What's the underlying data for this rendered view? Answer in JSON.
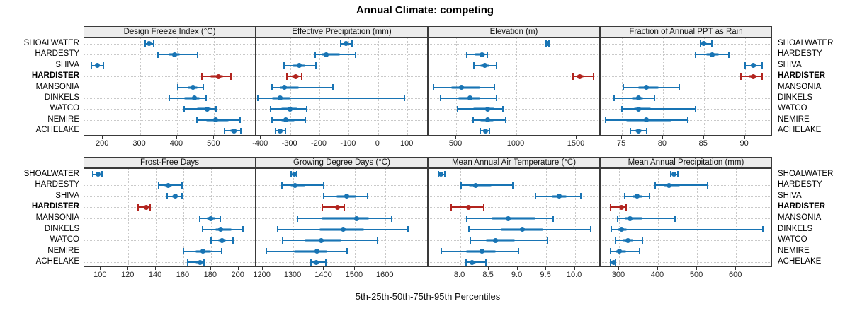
{
  "title": "Annual Climate: competing",
  "xlabel": "5th-25th-50th-75th-95th Percentiles",
  "colors": {
    "series": "#1874B4",
    "highlight": "#B2241E",
    "strip_bg": "#ECECEC",
    "grid": "#C9C9C9",
    "border": "#3A3A3A"
  },
  "highlight_site": "HARDISTER",
  "chart_data": {
    "type": "dotplot-percentiles",
    "percentile_labels": [
      "5th",
      "25th",
      "50th",
      "75th",
      "95th"
    ],
    "legend_note": "median dot with 5-95 whisker and 25-75 band; HARDISTER highlighted",
    "sites": [
      "SHOALWATER",
      "HARDESTY",
      "SHIVA",
      "HARDISTER",
      "MANSONIA",
      "DINKELS",
      "WATCO",
      "NEMIRE",
      "ACHELAKE"
    ],
    "panels": [
      {
        "title": "Design Freeze Index (°C)",
        "row": 0,
        "col": 0,
        "xlim": [
          150,
          614
        ],
        "ticks": [
          200,
          300,
          400,
          500
        ],
        "tick_labels": [
          "200",
          "300",
          "400",
          "500"
        ],
        "values": [
          [
            314,
            320,
            324,
            329,
            337
          ],
          [
            349,
            378,
            394,
            407,
            455
          ],
          [
            169,
            178,
            185,
            192,
            201
          ],
          [
            467,
            489,
            511,
            524,
            546
          ],
          [
            402,
            429,
            444,
            456,
            470
          ],
          [
            379,
            419,
            447,
            461,
            478
          ],
          [
            419,
            454,
            482,
            492,
            506
          ],
          [
            454,
            479,
            504,
            539,
            571
          ],
          [
            529,
            544,
            554,
            562,
            572
          ]
        ]
      },
      {
        "title": "Effective Precipitation (mm)",
        "row": 0,
        "col": 1,
        "xlim": [
          -415,
          172
        ],
        "ticks": [
          -400,
          -300,
          -200,
          -100,
          0,
          100
        ],
        "tick_labels": [
          "-400",
          "-300",
          "-200",
          "-100",
          "0",
          "100"
        ],
        "values": [
          [
            -128,
            -117,
            -109,
            -100,
            -89
          ],
          [
            -214,
            -192,
            -176,
            -131,
            -77
          ],
          [
            -321,
            -291,
            -269,
            -249,
            -211
          ],
          [
            -311,
            -294,
            -282,
            -271,
            -261
          ],
          [
            -361,
            -336,
            -319,
            -269,
            -154
          ],
          [
            -409,
            -361,
            -334,
            -299,
            90
          ],
          [
            -366,
            -331,
            -301,
            -274,
            -244
          ],
          [
            -361,
            -331,
            -314,
            -284,
            -249
          ],
          [
            -349,
            -340,
            -333,
            -326,
            -317
          ]
        ]
      },
      {
        "title": "Elevation (m)",
        "row": 0,
        "col": 2,
        "xlim": [
          270,
          1700
        ],
        "ticks": [
          500,
          1000,
          1500
        ],
        "tick_labels": [
          "500",
          "1000",
          "1500"
        ],
        "values": [
          [
            1245,
            1252,
            1257,
            1263,
            1271
          ],
          [
            585,
            655,
            712,
            742,
            761
          ],
          [
            644,
            699,
            739,
            774,
            834
          ],
          [
            1469,
            1499,
            1529,
            1559,
            1641
          ],
          [
            309,
            459,
            544,
            699,
            819
          ],
          [
            369,
            519,
            614,
            699,
            834
          ],
          [
            509,
            639,
            759,
            819,
            889
          ],
          [
            639,
            699,
            759,
            809,
            914
          ],
          [
            699,
            724,
            744,
            757,
            774
          ]
        ]
      },
      {
        "title": "Fraction of Annual PPT as Rain",
        "row": 0,
        "col": 3,
        "xlim": [
          72.4,
          93.4
        ],
        "ticks": [
          75,
          80,
          85,
          90
        ],
        "tick_labels": [
          "75",
          "80",
          "85",
          "90"
        ],
        "values": [
          [
            84.6,
            84.9,
            85.0,
            85.4,
            86.0
          ],
          [
            84.0,
            85.3,
            86.0,
            86.8,
            88.0
          ],
          [
            90.0,
            90.7,
            91.0,
            91.4,
            92.1
          ],
          [
            89.5,
            90.5,
            91.0,
            91.4,
            92.1
          ],
          [
            75.2,
            77.0,
            78.0,
            79.5,
            82.0
          ],
          [
            74.0,
            76.2,
            77.0,
            77.6,
            79.0
          ],
          [
            75.0,
            76.5,
            77.0,
            78.5,
            84.0
          ],
          [
            73.0,
            75.5,
            78.0,
            81.0,
            83.0
          ],
          [
            76.0,
            76.6,
            77.0,
            77.4,
            78.0
          ]
        ]
      },
      {
        "title": "Frost-Free Days",
        "row": 1,
        "col": 0,
        "xlim": [
          88,
          213
        ],
        "ticks": [
          100,
          120,
          140,
          160,
          180,
          200
        ],
        "tick_labels": [
          "100",
          "120",
          "140",
          "160",
          "180",
          "200"
        ],
        "values": [
          [
            94,
            96,
            98,
            99,
            101
          ],
          [
            142,
            146,
            149,
            152,
            159
          ],
          [
            148,
            152,
            154,
            156,
            159
          ],
          [
            127,
            131,
            133,
            135,
            136
          ],
          [
            172,
            177,
            180,
            183,
            187
          ],
          [
            174,
            183,
            187,
            195,
            203
          ],
          [
            180,
            185,
            188,
            191,
            196
          ],
          [
            160,
            169,
            174,
            180,
            188
          ],
          [
            163,
            169,
            172,
            174,
            175
          ]
        ]
      },
      {
        "title": "Growing Degree Days (°C)",
        "row": 1,
        "col": 1,
        "xlim": [
          1180,
          1740
        ],
        "ticks": [
          1200,
          1300,
          1400,
          1500,
          1600
        ],
        "tick_labels": [
          "1200",
          "1300",
          "1400",
          "1500",
          "1600"
        ],
        "values": [
          [
            1294,
            1299,
            1303,
            1307,
            1312
          ],
          [
            1262,
            1290,
            1305,
            1340,
            1398
          ],
          [
            1398,
            1441,
            1474,
            1506,
            1541
          ],
          [
            1394,
            1426,
            1443,
            1456,
            1466
          ],
          [
            1313,
            1391,
            1507,
            1546,
            1621
          ],
          [
            1248,
            1386,
            1462,
            1531,
            1673
          ],
          [
            1265,
            1336,
            1391,
            1456,
            1574
          ],
          [
            1213,
            1301,
            1378,
            1411,
            1476
          ],
          [
            1357,
            1365,
            1374,
            1386,
            1406
          ]
        ]
      },
      {
        "title": "Mean Annual Air Temperature (°C)",
        "row": 1,
        "col": 2,
        "xlim": [
          7.45,
          10.45
        ],
        "ticks": [
          8.0,
          8.5,
          9.0,
          9.5,
          10.0
        ],
        "tick_labels": [
          "8.0",
          "8.5",
          "9.0",
          "9.5",
          "10.0"
        ],
        "values": [
          [
            7.62,
            7.65,
            7.67,
            7.7,
            7.73
          ],
          [
            8.02,
            8.15,
            8.27,
            8.55,
            8.92
          ],
          [
            9.32,
            9.6,
            9.73,
            9.86,
            10.11
          ],
          [
            7.85,
            8.0,
            8.15,
            8.28,
            8.41
          ],
          [
            8.12,
            8.55,
            8.84,
            9.32,
            9.62
          ],
          [
            8.15,
            8.71,
            9.08,
            9.45,
            10.28
          ],
          [
            8.18,
            8.45,
            8.62,
            8.95,
            9.52
          ],
          [
            7.67,
            8.1,
            8.38,
            8.62,
            9.02
          ],
          [
            8.1,
            8.16,
            8.21,
            8.28,
            8.45
          ]
        ]
      },
      {
        "title": "Mean Annual Precipitation (mm)",
        "row": 1,
        "col": 3,
        "xlim": [
          253,
          694
        ],
        "ticks": [
          300,
          400,
          500,
          600
        ],
        "tick_labels": [
          "300",
          "400",
          "500",
          "600"
        ],
        "values": [
          [
            432,
            437,
            441,
            445,
            451
          ],
          [
            393,
            415,
            428,
            456,
            527
          ],
          [
            315,
            335,
            347,
            360,
            378
          ],
          [
            278,
            295,
            307,
            313,
            318
          ],
          [
            297,
            315,
            328,
            360,
            443
          ],
          [
            280,
            297,
            307,
            320,
            668
          ],
          [
            292,
            310,
            323,
            336,
            360
          ],
          [
            278,
            292,
            301,
            318,
            352
          ],
          [
            279,
            283,
            286,
            289,
            292
          ]
        ]
      }
    ]
  }
}
